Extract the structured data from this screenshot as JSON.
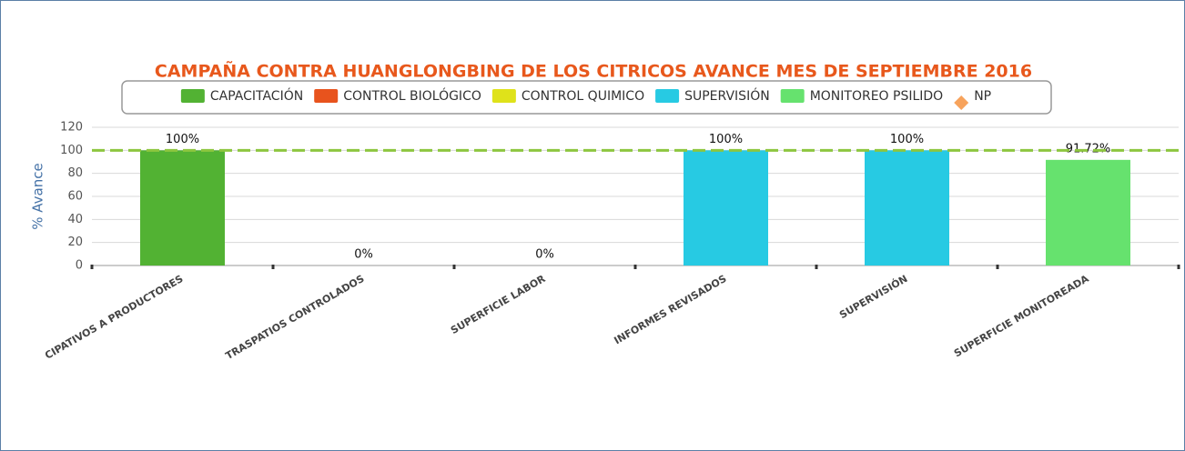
{
  "chart_data": {
    "type": "bar",
    "title": "CAMPAÑA CONTRA HUANGLONGBING DE LOS CITRICOS AVANCE MES DE SEPTIEMBRE 2016",
    "y_label": "% Avance",
    "categories": [
      "CIPATIVOS A PRODUCTORES",
      "TRASPATIOS CONTROLADOS",
      "SUPERFICIE LABOR",
      "INFORMES REVISADOS",
      "SUPERVISIÓN",
      "SUPERFICIE MONITOREADA"
    ],
    "series": [
      {
        "name": "CAPACITACIÓN",
        "color": "#52b233",
        "values": [
          100,
          null,
          null,
          null,
          null,
          null
        ],
        "value_labels": [
          "100%",
          null,
          null,
          null,
          null,
          null
        ]
      },
      {
        "name": "CONTROL BIOLÓGICO",
        "color": "#e8531d",
        "values": [
          null,
          0,
          null,
          null,
          null,
          null
        ],
        "value_labels": [
          null,
          "0%",
          null,
          null,
          null,
          null
        ]
      },
      {
        "name": "CONTROL QUIMICO",
        "color": "#dfe21a",
        "values": [
          null,
          null,
          0,
          null,
          null,
          null
        ],
        "value_labels": [
          null,
          null,
          "0%",
          null,
          null,
          null
        ]
      },
      {
        "name": "SUPERVISIÓN",
        "color": "#27cae3",
        "values": [
          null,
          null,
          null,
          100,
          100,
          null
        ],
        "value_labels": [
          null,
          null,
          null,
          "100%",
          "100%",
          null
        ]
      },
      {
        "name": "MONITOREO PSILIDO",
        "color": "#66e26e",
        "values": [
          null,
          null,
          null,
          null,
          null,
          91.72
        ],
        "value_labels": [
          null,
          null,
          null,
          null,
          null,
          "91.72%"
        ]
      },
      {
        "name": "NP",
        "color": "#f7a35c",
        "marker": "diamond",
        "values": [
          null,
          null,
          null,
          null,
          null,
          null
        ]
      }
    ],
    "reference_line": {
      "value": 100,
      "color": "#8dc63f"
    },
    "ylim": [
      0,
      120
    ],
    "yticks": [
      0,
      20,
      40,
      60,
      80,
      100,
      120
    ],
    "grid": true
  }
}
